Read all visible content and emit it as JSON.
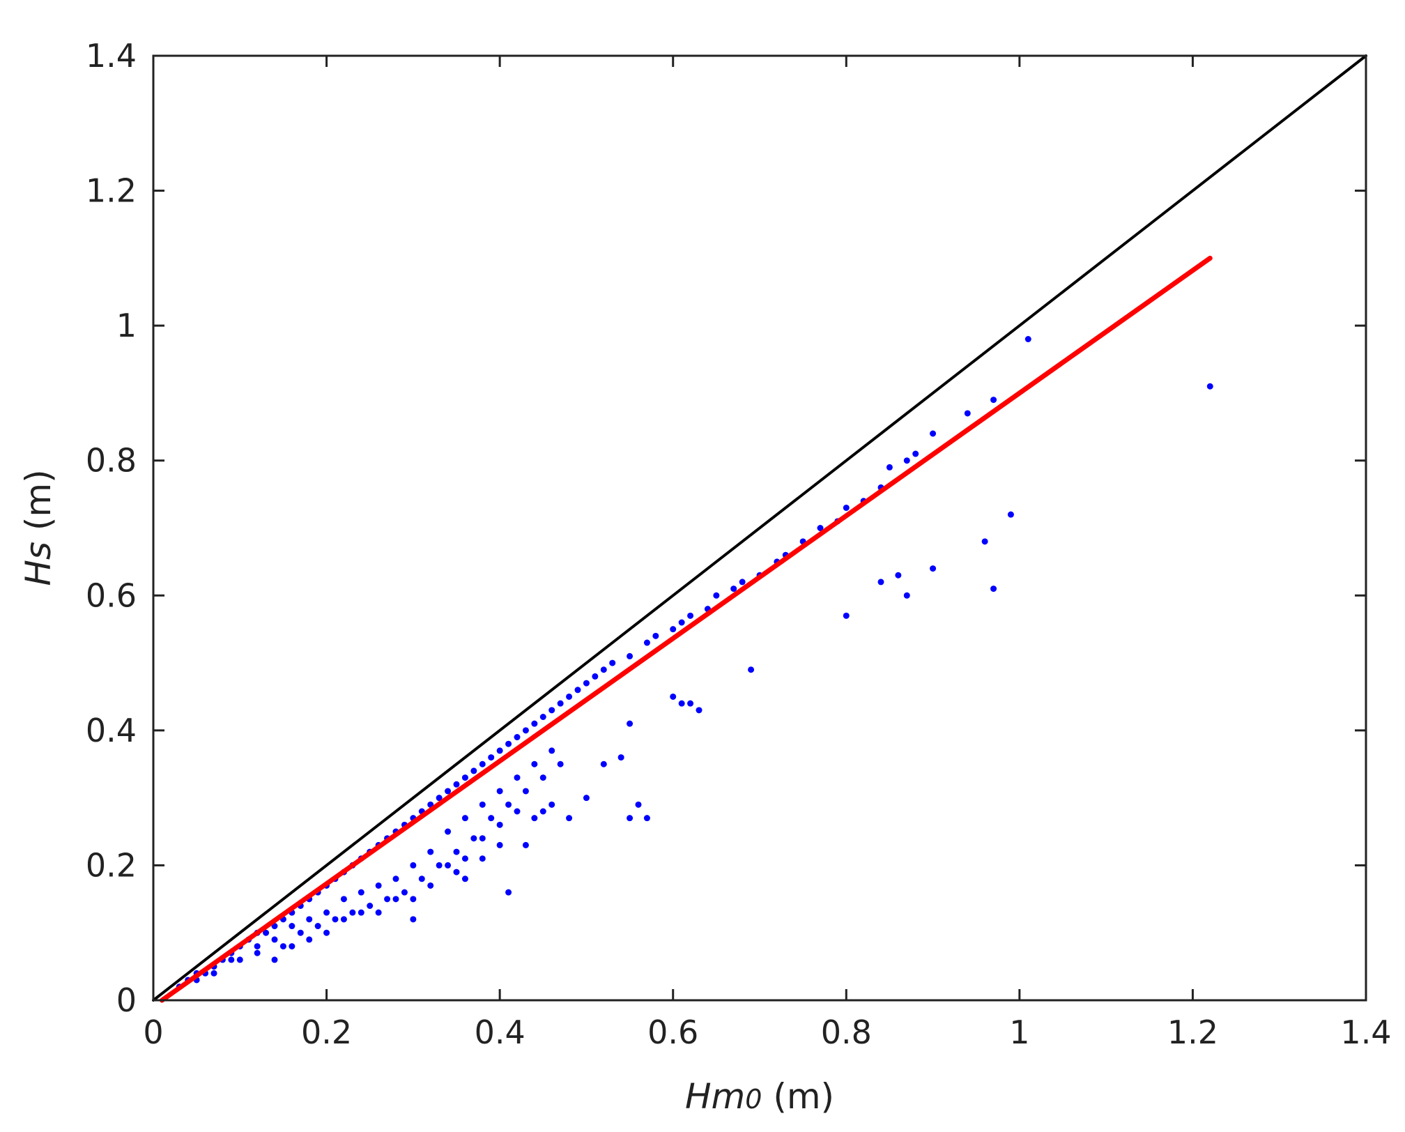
{
  "chart_data": {
    "type": "scatter",
    "title": "",
    "xlabel": {
      "main": "Hm",
      "sub": "0",
      "unit": " (m)"
    },
    "ylabel": {
      "main": "Hs",
      "unit": " (m)"
    },
    "xlim": [
      0,
      1.4
    ],
    "ylim": [
      0,
      1.4
    ],
    "xticks": [
      0,
      0.2,
      0.4,
      0.6,
      0.8,
      1,
      1.2,
      1.4
    ],
    "xtick_labels": [
      "0",
      "0.2",
      "0.4",
      "0.6",
      "0.8",
      "1",
      "1.2",
      "1.4"
    ],
    "yticks": [
      0,
      0.2,
      0.4,
      0.6,
      0.8,
      1,
      1.2,
      1.4
    ],
    "ytick_labels": [
      "0",
      "0.2",
      "0.4",
      "0.6",
      "0.8",
      "1",
      "1.2",
      "1.4"
    ],
    "grid": false,
    "colors": {
      "scatter": "#0000ff",
      "reference": "#000000",
      "fit": "#ff0000",
      "axes": "#222222"
    },
    "series": [
      {
        "kind": "scatter",
        "color": "#0000ff",
        "points": [
          [
            0.03,
            0.02
          ],
          [
            0.04,
            0.03
          ],
          [
            0.05,
            0.04
          ],
          [
            0.06,
            0.04
          ],
          [
            0.07,
            0.05
          ],
          [
            0.08,
            0.06
          ],
          [
            0.09,
            0.07
          ],
          [
            0.1,
            0.08
          ],
          [
            0.11,
            0.09
          ],
          [
            0.12,
            0.1
          ],
          [
            0.13,
            0.1
          ],
          [
            0.14,
            0.11
          ],
          [
            0.15,
            0.12
          ],
          [
            0.16,
            0.13
          ],
          [
            0.17,
            0.14
          ],
          [
            0.18,
            0.15
          ],
          [
            0.19,
            0.16
          ],
          [
            0.2,
            0.17
          ],
          [
            0.21,
            0.18
          ],
          [
            0.22,
            0.19
          ],
          [
            0.23,
            0.2
          ],
          [
            0.24,
            0.21
          ],
          [
            0.25,
            0.22
          ],
          [
            0.26,
            0.23
          ],
          [
            0.27,
            0.24
          ],
          [
            0.28,
            0.25
          ],
          [
            0.29,
            0.26
          ],
          [
            0.3,
            0.27
          ],
          [
            0.31,
            0.28
          ],
          [
            0.32,
            0.29
          ],
          [
            0.33,
            0.3
          ],
          [
            0.34,
            0.31
          ],
          [
            0.35,
            0.32
          ],
          [
            0.36,
            0.33
          ],
          [
            0.37,
            0.34
          ],
          [
            0.38,
            0.35
          ],
          [
            0.39,
            0.36
          ],
          [
            0.4,
            0.37
          ],
          [
            0.41,
            0.38
          ],
          [
            0.42,
            0.39
          ],
          [
            0.43,
            0.4
          ],
          [
            0.44,
            0.41
          ],
          [
            0.45,
            0.42
          ],
          [
            0.46,
            0.43
          ],
          [
            0.47,
            0.44
          ],
          [
            0.48,
            0.45
          ],
          [
            0.49,
            0.46
          ],
          [
            0.5,
            0.47
          ],
          [
            0.51,
            0.48
          ],
          [
            0.52,
            0.49
          ],
          [
            0.53,
            0.5
          ],
          [
            0.05,
            0.03
          ],
          [
            0.07,
            0.04
          ],
          [
            0.09,
            0.06
          ],
          [
            0.1,
            0.06
          ],
          [
            0.12,
            0.08
          ],
          [
            0.14,
            0.09
          ],
          [
            0.15,
            0.08
          ],
          [
            0.16,
            0.11
          ],
          [
            0.17,
            0.1
          ],
          [
            0.18,
            0.12
          ],
          [
            0.19,
            0.11
          ],
          [
            0.2,
            0.13
          ],
          [
            0.21,
            0.12
          ],
          [
            0.22,
            0.15
          ],
          [
            0.23,
            0.13
          ],
          [
            0.24,
            0.16
          ],
          [
            0.25,
            0.14
          ],
          [
            0.26,
            0.17
          ],
          [
            0.27,
            0.15
          ],
          [
            0.28,
            0.18
          ],
          [
            0.29,
            0.16
          ],
          [
            0.3,
            0.2
          ],
          [
            0.31,
            0.18
          ],
          [
            0.32,
            0.22
          ],
          [
            0.33,
            0.2
          ],
          [
            0.34,
            0.25
          ],
          [
            0.35,
            0.22
          ],
          [
            0.36,
            0.27
          ],
          [
            0.37,
            0.24
          ],
          [
            0.38,
            0.29
          ],
          [
            0.39,
            0.27
          ],
          [
            0.4,
            0.31
          ],
          [
            0.41,
            0.29
          ],
          [
            0.42,
            0.33
          ],
          [
            0.43,
            0.31
          ],
          [
            0.44,
            0.35
          ],
          [
            0.45,
            0.33
          ],
          [
            0.46,
            0.37
          ],
          [
            0.47,
            0.35
          ],
          [
            0.12,
            0.07
          ],
          [
            0.14,
            0.06
          ],
          [
            0.16,
            0.08
          ],
          [
            0.18,
            0.09
          ],
          [
            0.2,
            0.1
          ],
          [
            0.22,
            0.12
          ],
          [
            0.24,
            0.13
          ],
          [
            0.26,
            0.13
          ],
          [
            0.28,
            0.15
          ],
          [
            0.3,
            0.15
          ],
          [
            0.32,
            0.17
          ],
          [
            0.34,
            0.2
          ],
          [
            0.36,
            0.21
          ],
          [
            0.38,
            0.24
          ],
          [
            0.4,
            0.26
          ],
          [
            0.42,
            0.28
          ],
          [
            0.44,
            0.27
          ],
          [
            0.3,
            0.12
          ],
          [
            0.35,
            0.19
          ],
          [
            0.36,
            0.18
          ],
          [
            0.38,
            0.21
          ],
          [
            0.4,
            0.23
          ],
          [
            0.41,
            0.16
          ],
          [
            0.43,
            0.23
          ],
          [
            0.45,
            0.28
          ],
          [
            0.46,
            0.29
          ],
          [
            0.48,
            0.27
          ],
          [
            0.5,
            0.3
          ],
          [
            0.52,
            0.35
          ],
          [
            0.54,
            0.36
          ],
          [
            0.55,
            0.41
          ],
          [
            0.55,
            0.27
          ],
          [
            0.56,
            0.29
          ],
          [
            0.57,
            0.27
          ],
          [
            0.6,
            0.45
          ],
          [
            0.61,
            0.44
          ],
          [
            0.62,
            0.44
          ],
          [
            0.63,
            0.43
          ],
          [
            0.55,
            0.51
          ],
          [
            0.57,
            0.53
          ],
          [
            0.58,
            0.54
          ],
          [
            0.6,
            0.55
          ],
          [
            0.61,
            0.56
          ],
          [
            0.62,
            0.57
          ],
          [
            0.64,
            0.58
          ],
          [
            0.65,
            0.6
          ],
          [
            0.67,
            0.61
          ],
          [
            0.68,
            0.62
          ],
          [
            0.7,
            0.63
          ],
          [
            0.72,
            0.65
          ],
          [
            0.73,
            0.66
          ],
          [
            0.75,
            0.68
          ],
          [
            0.77,
            0.7
          ],
          [
            0.79,
            0.71
          ],
          [
            0.8,
            0.73
          ],
          [
            0.82,
            0.74
          ],
          [
            0.84,
            0.76
          ],
          [
            0.85,
            0.79
          ],
          [
            0.87,
            0.8
          ],
          [
            0.88,
            0.81
          ],
          [
            0.9,
            0.84
          ],
          [
            0.94,
            0.87
          ],
          [
            0.97,
            0.89
          ],
          [
            0.69,
            0.49
          ],
          [
            0.8,
            0.57
          ],
          [
            0.84,
            0.62
          ],
          [
            0.86,
            0.63
          ],
          [
            0.87,
            0.6
          ],
          [
            0.9,
            0.64
          ],
          [
            0.96,
            0.68
          ],
          [
            0.97,
            0.61
          ],
          [
            0.99,
            0.72
          ],
          [
            1.01,
            0.98
          ],
          [
            1.22,
            0.91
          ]
        ]
      },
      {
        "kind": "line",
        "color": "#000000",
        "points": [
          [
            0,
            0
          ],
          [
            1.4,
            1.4
          ]
        ]
      },
      {
        "kind": "line",
        "color": "#ff0000",
        "points": [
          [
            0.01,
            0
          ],
          [
            1.22,
            1.1
          ]
        ]
      }
    ]
  }
}
